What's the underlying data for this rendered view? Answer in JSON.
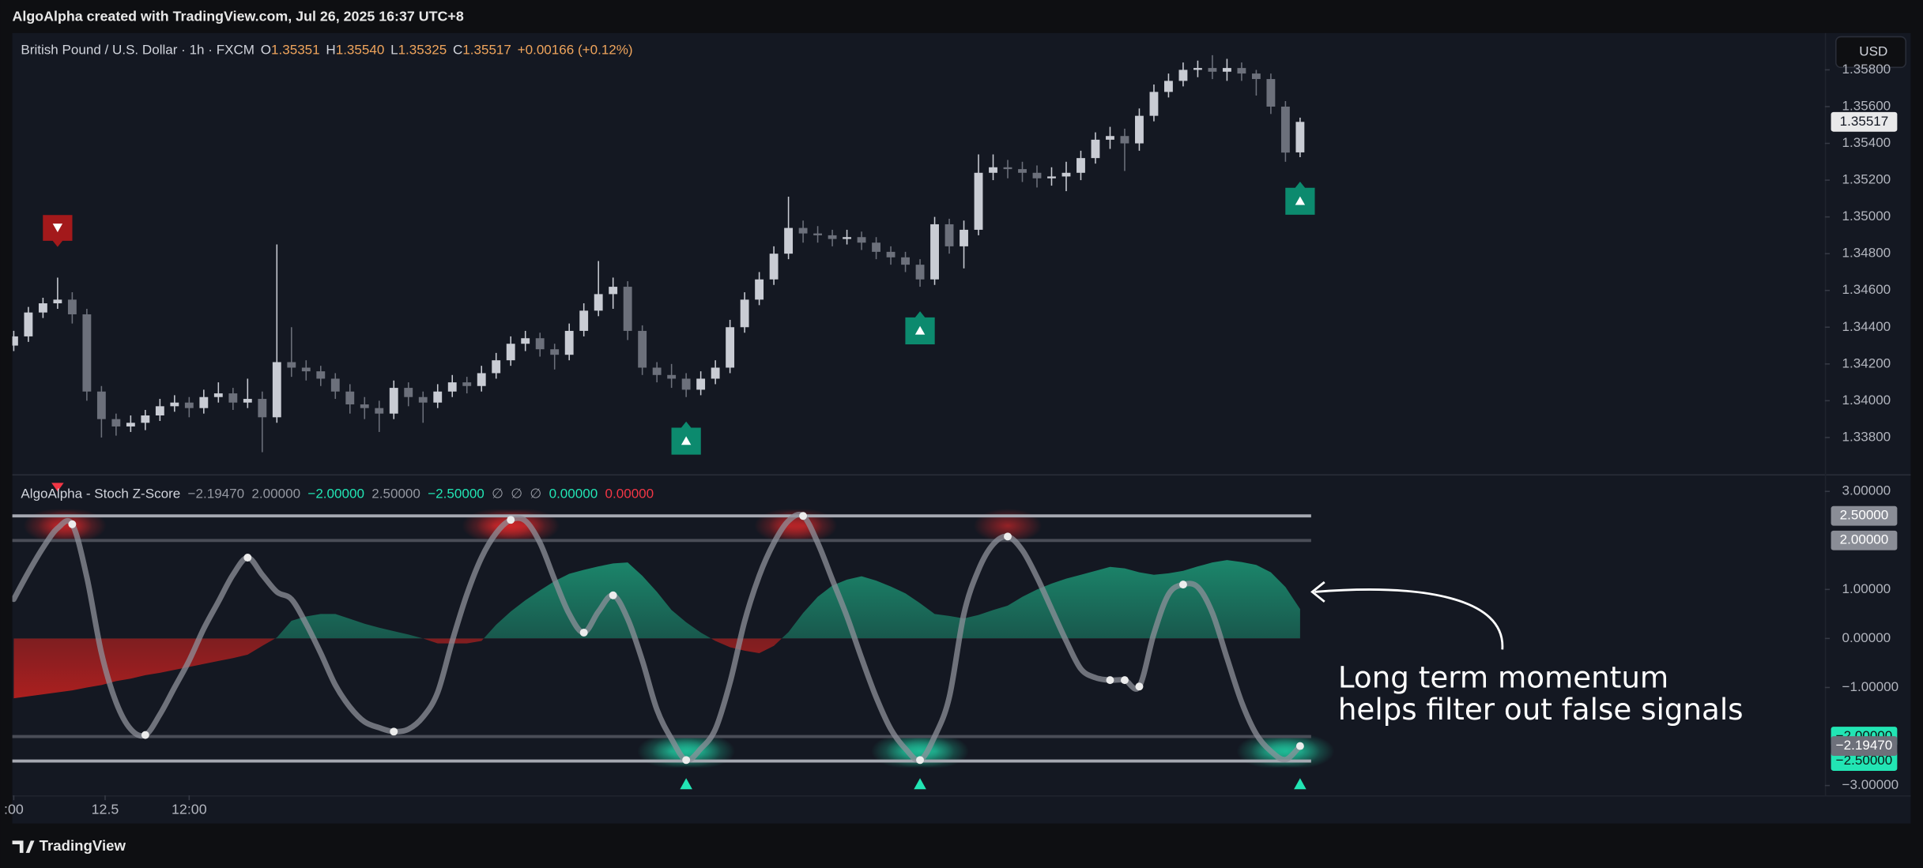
{
  "page": {
    "caption": "AlgoAlpha created with TradingView.com, Jul 26, 2025 16:37 UTC+8",
    "brand": "TradingView",
    "currency": "USD"
  },
  "annotation": {
    "lines": [
      "Long term momentum",
      "helps filter out false signals"
    ]
  },
  "chart_data": [
    {
      "type": "candlestick",
      "title": "British Pound / U.S. Dollar · 1h · FXCM",
      "ohlc_legend": [
        {
          "key": "O",
          "value": "1.35351"
        },
        {
          "key": "H",
          "value": "1.35540"
        },
        {
          "key": "L",
          "value": "1.35325"
        },
        {
          "key": "C",
          "value": "1.35517"
        }
      ],
      "change": "+0.00166 (+0.12%)",
      "legend_color": "#f0a55c",
      "up_color": "#c9ccd4",
      "down_color": "#6c707b",
      "x": [
        0,
        2,
        4,
        6,
        8,
        10,
        12,
        14,
        16,
        18,
        20,
        22,
        24,
        26,
        28,
        30,
        32,
        34,
        36,
        38,
        40,
        42,
        44,
        46,
        48,
        50,
        52,
        54,
        56,
        58,
        60,
        62,
        64,
        66,
        68,
        70,
        72,
        74,
        76,
        78,
        80,
        82,
        84,
        86,
        88,
        90,
        92,
        94,
        96,
        98,
        100,
        102,
        104,
        106,
        108,
        110,
        112,
        114,
        116,
        118,
        120,
        122,
        124,
        126,
        128,
        130,
        132,
        134,
        136,
        138,
        140,
        142,
        144,
        146,
        148,
        150,
        152,
        154,
        156,
        158,
        160,
        162,
        164,
        166,
        168,
        170,
        172,
        174,
        176
      ],
      "open": [
        1.343,
        1.3435,
        1.3448,
        1.3453,
        1.3455,
        1.3447,
        1.3405,
        1.339,
        1.3386,
        1.3388,
        1.3392,
        1.3397,
        1.3399,
        1.3396,
        1.3402,
        1.3404,
        1.3399,
        1.3401,
        1.3391,
        1.3421,
        1.3418,
        1.3416,
        1.3412,
        1.3405,
        1.3398,
        1.3396,
        1.3393,
        1.3407,
        1.3402,
        1.3399,
        1.3405,
        1.341,
        1.3408,
        1.3415,
        1.3422,
        1.3431,
        1.3434,
        1.3428,
        1.3425,
        1.3438,
        1.3449,
        1.3458,
        1.3462,
        1.3438,
        1.3418,
        1.3414,
        1.3412,
        1.3406,
        1.3412,
        1.3418,
        1.344,
        1.3455,
        1.3466,
        1.348,
        1.3494,
        1.3491,
        1.349,
        1.3488,
        1.3489,
        1.3486,
        1.3481,
        1.3478,
        1.3474,
        1.3466,
        1.3496,
        1.3484,
        1.3493,
        1.3524,
        1.3527,
        1.3526,
        1.3524,
        1.3521,
        1.3522,
        1.3524,
        1.3532,
        1.3542,
        1.3544,
        1.354,
        1.3555,
        1.3568,
        1.3574,
        1.358,
        1.3581,
        1.3579,
        1.3581,
        1.3578,
        1.3575,
        1.356,
        1.35351
      ],
      "high": [
        1.3438,
        1.3451,
        1.3456,
        1.3467,
        1.3459,
        1.345,
        1.3408,
        1.3393,
        1.3392,
        1.3395,
        1.3401,
        1.3403,
        1.3402,
        1.3406,
        1.341,
        1.3407,
        1.3412,
        1.3405,
        1.3485,
        1.344,
        1.3422,
        1.3419,
        1.3415,
        1.3409,
        1.3402,
        1.34,
        1.3411,
        1.341,
        1.3405,
        1.3409,
        1.3414,
        1.3413,
        1.3419,
        1.3426,
        1.3435,
        1.3438,
        1.3437,
        1.3431,
        1.3442,
        1.3453,
        1.3476,
        1.3467,
        1.3465,
        1.3441,
        1.3421,
        1.342,
        1.3415,
        1.3416,
        1.3422,
        1.3444,
        1.3459,
        1.347,
        1.3484,
        1.3511,
        1.3498,
        1.3495,
        1.3493,
        1.3493,
        1.3492,
        1.3489,
        1.3484,
        1.3481,
        1.3477,
        1.35,
        1.3499,
        1.3498,
        1.3534,
        1.3534,
        1.3531,
        1.353,
        1.3528,
        1.3527,
        1.353,
        1.3536,
        1.3546,
        1.3549,
        1.3548,
        1.3559,
        1.3572,
        1.3578,
        1.3584,
        1.3585,
        1.3588,
        1.3586,
        1.3584,
        1.358,
        1.3578,
        1.3563,
        1.3554
      ],
      "low": [
        1.3427,
        1.3432,
        1.3445,
        1.345,
        1.3442,
        1.34,
        1.338,
        1.3381,
        1.3383,
        1.3384,
        1.3389,
        1.3394,
        1.3391,
        1.3393,
        1.3399,
        1.3395,
        1.3396,
        1.3372,
        1.3388,
        1.3413,
        1.3411,
        1.3408,
        1.3401,
        1.3393,
        1.339,
        1.3383,
        1.339,
        1.3397,
        1.3388,
        1.3396,
        1.3402,
        1.3404,
        1.3405,
        1.3412,
        1.3419,
        1.3427,
        1.3424,
        1.3417,
        1.3422,
        1.3435,
        1.3446,
        1.345,
        1.3433,
        1.3414,
        1.341,
        1.3407,
        1.3402,
        1.3403,
        1.3409,
        1.3415,
        1.3437,
        1.3452,
        1.3463,
        1.3477,
        1.3486,
        1.3486,
        1.3484,
        1.3485,
        1.3482,
        1.3477,
        1.3474,
        1.347,
        1.3462,
        1.3463,
        1.348,
        1.3472,
        1.349,
        1.352,
        1.3521,
        1.3519,
        1.3516,
        1.3517,
        1.3514,
        1.352,
        1.3529,
        1.3537,
        1.3525,
        1.3536,
        1.3552,
        1.3565,
        1.3571,
        1.3576,
        1.3575,
        1.3574,
        1.3574,
        1.3566,
        1.3556,
        1.353,
        1.35325
      ],
      "close": [
        1.3435,
        1.3448,
        1.3453,
        1.3455,
        1.3447,
        1.3405,
        1.339,
        1.3386,
        1.3388,
        1.3392,
        1.3397,
        1.3399,
        1.3396,
        1.3402,
        1.3404,
        1.3399,
        1.3401,
        1.3391,
        1.3421,
        1.3418,
        1.3416,
        1.3412,
        1.3405,
        1.3398,
        1.3396,
        1.3393,
        1.3407,
        1.3402,
        1.3399,
        1.3405,
        1.341,
        1.3408,
        1.3415,
        1.3422,
        1.3431,
        1.3434,
        1.3428,
        1.3425,
        1.3438,
        1.3449,
        1.3458,
        1.3462,
        1.3438,
        1.3418,
        1.3414,
        1.3412,
        1.3406,
        1.3412,
        1.3418,
        1.344,
        1.3455,
        1.3466,
        1.348,
        1.3494,
        1.3491,
        1.349,
        1.3488,
        1.3489,
        1.3486,
        1.3481,
        1.3478,
        1.3474,
        1.3466,
        1.3496,
        1.3484,
        1.3493,
        1.3524,
        1.3527,
        1.3526,
        1.3524,
        1.3521,
        1.3522,
        1.3524,
        1.3532,
        1.3542,
        1.3544,
        1.354,
        1.3555,
        1.3568,
        1.3574,
        1.358,
        1.3581,
        1.3579,
        1.3581,
        1.3578,
        1.3575,
        1.356,
        1.3535,
        1.35517
      ],
      "signals": {
        "sell": [
          6
        ],
        "buy": [
          92,
          124,
          176
        ],
        "sell_color": "#a3191b",
        "buy_color": "#0c8a6e"
      },
      "xlim": [
        -0.2,
        247.8
      ],
      "ylim": [
        1.336,
        1.36
      ],
      "yticks": [
        {
          "value": 1.338,
          "label": "1.33800"
        },
        {
          "value": 1.34,
          "label": "1.34000"
        },
        {
          "value": 1.342,
          "label": "1.34200"
        },
        {
          "value": 1.344,
          "label": "1.34400"
        },
        {
          "value": 1.346,
          "label": "1.34600"
        },
        {
          "value": 1.348,
          "label": "1.34800"
        },
        {
          "value": 1.35,
          "label": "1.35000"
        },
        {
          "value": 1.352,
          "label": "1.35200"
        },
        {
          "value": 1.354,
          "label": "1.35400"
        },
        {
          "value": 1.356,
          "label": "1.35600"
        },
        {
          "value": 1.358,
          "label": "1.35800"
        }
      ]
    },
    {
      "type": "line",
      "title": "AlgoAlpha - Stoch Z-Score",
      "legend_values": [
        {
          "text": "−2.19470",
          "color": "#9598a1"
        },
        {
          "text": "2.00000",
          "color": "#9598a1"
        },
        {
          "text": "−2.00000",
          "color": "#22e5b4"
        },
        {
          "text": "2.50000",
          "color": "#9598a1"
        },
        {
          "text": "−2.50000",
          "color": "#22e5b4"
        },
        {
          "text": "∅",
          "color": "#9598a1"
        },
        {
          "text": "∅",
          "color": "#9598a1"
        },
        {
          "text": "∅",
          "color": "#9598a1"
        },
        {
          "text": "0.00000",
          "color": "#22e5b4"
        },
        {
          "text": "0.00000",
          "color": "#f23645"
        }
      ],
      "x": [
        0,
        2,
        4,
        6,
        8,
        10,
        12,
        14,
        16,
        18,
        20,
        22,
        24,
        26,
        28,
        30,
        32,
        34,
        36,
        38,
        40,
        42,
        44,
        46,
        48,
        50,
        52,
        54,
        56,
        58,
        60,
        62,
        64,
        66,
        68,
        70,
        72,
        74,
        76,
        78,
        80,
        82,
        84,
        86,
        88,
        90,
        92,
        94,
        96,
        98,
        100,
        102,
        104,
        106,
        108,
        110,
        112,
        114,
        116,
        118,
        120,
        122,
        124,
        126,
        128,
        130,
        132,
        134,
        136,
        138,
        140,
        142,
        144,
        146,
        148,
        150,
        152,
        154,
        156,
        158,
        160,
        162,
        164,
        166,
        168,
        170,
        172,
        174,
        176
      ],
      "series": [
        {
          "type": "line",
          "color": "#8d9099",
          "values": [
            0.8,
            1.35,
            1.85,
            2.25,
            2.33,
            1.25,
            -0.3,
            -1.3,
            -1.85,
            -1.97,
            -1.55,
            -1.0,
            -0.45,
            0.2,
            0.75,
            1.3,
            1.65,
            1.3,
            0.95,
            0.8,
            0.3,
            -0.3,
            -0.95,
            -1.4,
            -1.7,
            -1.82,
            -1.9,
            -1.85,
            -1.6,
            -1.1,
            -0.05,
            0.9,
            1.65,
            2.15,
            2.42,
            2.4,
            1.95,
            1.2,
            0.5,
            0.12,
            0.55,
            0.88,
            0.4,
            -0.45,
            -1.45,
            -2.05,
            -2.48,
            -2.25,
            -1.85,
            -0.9,
            0.35,
            1.28,
            1.95,
            2.4,
            2.5,
            1.95,
            1.2,
            0.45,
            -0.4,
            -1.2,
            -1.85,
            -2.25,
            -2.48,
            -2.0,
            -1.2,
            0.5,
            1.4,
            1.92,
            2.08,
            1.8,
            1.25,
            0.6,
            -0.05,
            -0.62,
            -0.8,
            -0.85,
            -0.85,
            -0.98,
            0.1,
            0.9,
            1.1,
            1.05,
            0.52,
            -0.4,
            -1.3,
            -1.95,
            -2.3,
            -2.47,
            -2.1947
          ]
        },
        {
          "type": "area",
          "up_color": "#1c8c6f",
          "down_color": "#b3201f",
          "values": [
            -1.22,
            -1.18,
            -1.14,
            -1.1,
            -1.06,
            -1.0,
            -0.95,
            -0.87,
            -0.82,
            -0.75,
            -0.7,
            -0.64,
            -0.58,
            -0.52,
            -0.46,
            -0.4,
            -0.33,
            -0.15,
            0.02,
            0.36,
            0.45,
            0.5,
            0.5,
            0.4,
            0.3,
            0.22,
            0.15,
            0.08,
            0.0,
            -0.1,
            -0.1,
            -0.1,
            -0.05,
            0.28,
            0.55,
            0.78,
            0.98,
            1.17,
            1.32,
            1.4,
            1.47,
            1.53,
            1.55,
            1.28,
            0.95,
            0.58,
            0.33,
            0.12,
            -0.05,
            -0.18,
            -0.25,
            -0.3,
            -0.15,
            0.13,
            0.52,
            0.85,
            1.08,
            1.2,
            1.27,
            1.18,
            1.06,
            0.92,
            0.72,
            0.5,
            0.46,
            0.41,
            0.48,
            0.58,
            0.67,
            0.85,
            1.0,
            1.12,
            1.22,
            1.3,
            1.38,
            1.46,
            1.43,
            1.35,
            1.3,
            1.33,
            1.38,
            1.47,
            1.55,
            1.6,
            1.56,
            1.5,
            1.35,
            1.05,
            0.6
          ]
        }
      ],
      "pivots": [
        4,
        9,
        16,
        26,
        34,
        39,
        41,
        46,
        54,
        62,
        68,
        75,
        76,
        77,
        80,
        88
      ],
      "current_label": "−2.19470",
      "levels": [
        {
          "value": 2.5,
          "label": "2.50000",
          "color": "#a6a9b2",
          "badge": "#8a8d96",
          "text_color": "#ffffff"
        },
        {
          "value": 2.0,
          "label": "2.00000",
          "color": "#4a4d57",
          "badge": "#8a8d96",
          "text_color": "#ffffff"
        },
        {
          "value": -2.0,
          "label": "−2.00000",
          "color": "#4a4d57",
          "badge": "#22e5b4",
          "text_color": "#0e1a16"
        },
        {
          "value": -2.5,
          "label": "−2.50000",
          "color": "#a6a9b2",
          "badge": "#22e5b4",
          "text_color": "#0e1a16"
        }
      ],
      "xlim": [
        -0.2,
        247.8
      ],
      "ylim": [
        -3.175,
        3.325
      ],
      "yticks": [
        {
          "value": 3,
          "label": "3.00000"
        },
        {
          "value": 1,
          "label": "1.00000"
        },
        {
          "value": 0,
          "label": "0.00000"
        },
        {
          "value": -1,
          "label": "−1.00000"
        },
        {
          "value": -3,
          "label": "−3.00000"
        }
      ],
      "xticks": [
        {
          "value": 0,
          "label": ":00"
        },
        12.5,
        {
          "value": 24,
          "label": "12:00"
        }
      ]
    }
  ]
}
